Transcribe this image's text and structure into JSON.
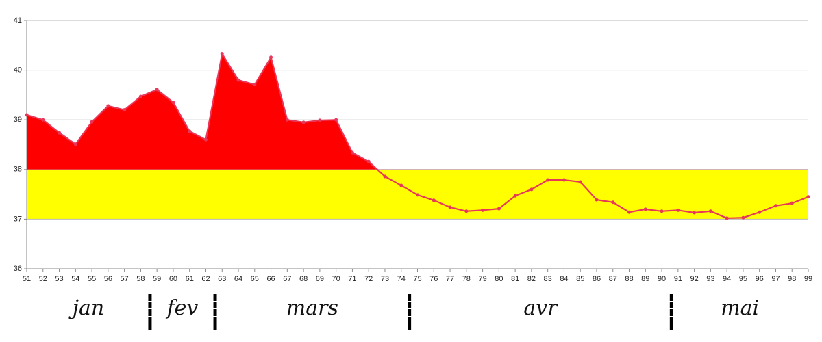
{
  "chart_data": {
    "type": "line",
    "x": [
      51,
      52,
      53,
      54,
      55,
      56,
      57,
      58,
      59,
      60,
      61,
      62,
      63,
      64,
      65,
      66,
      67,
      68,
      69,
      70,
      71,
      72,
      73,
      74,
      75,
      76,
      77,
      78,
      79,
      80,
      81,
      82,
      83,
      84,
      85,
      86,
      87,
      88,
      89,
      90,
      91,
      92,
      93,
      94,
      95,
      96,
      97,
      98,
      99
    ],
    "series": [
      {
        "color": "#e8385a",
        "values": [
          39.1,
          39.0,
          38.74,
          38.51,
          38.96,
          39.28,
          39.2,
          39.47,
          39.61,
          39.35,
          38.77,
          38.6,
          40.33,
          39.8,
          39.71,
          40.26,
          39.0,
          38.95,
          38.99,
          39.0,
          38.34,
          38.16,
          37.86,
          37.68,
          37.49,
          37.38,
          37.24,
          37.16,
          37.18,
          37.21,
          37.47,
          37.6,
          37.79,
          37.79,
          37.75,
          37.39,
          37.34,
          37.14,
          37.2,
          37.16,
          37.18,
          37.13,
          37.16,
          37.02,
          37.03,
          37.14,
          37.27,
          37.32,
          37.45
        ]
      }
    ],
    "xlim": [
      51,
      99
    ],
    "xticks": [
      51,
      52,
      53,
      54,
      55,
      56,
      57,
      58,
      59,
      60,
      61,
      62,
      63,
      64,
      65,
      66,
      67,
      68,
      69,
      70,
      71,
      72,
      73,
      74,
      75,
      76,
      77,
      78,
      79,
      80,
      81,
      82,
      83,
      84,
      85,
      86,
      87,
      88,
      89,
      90,
      91,
      92,
      93,
      94,
      95,
      96,
      97,
      98,
      99
    ],
    "ylim": [
      36,
      41
    ],
    "yticks": [
      36,
      37,
      38,
      39,
      40,
      41
    ],
    "grid": true,
    "band": [
      37,
      38
    ],
    "band_color": "#ffff00",
    "fill_above": 38,
    "fill_color": "#ff0000",
    "months": [
      "jan",
      "fev",
      "mars",
      "avr",
      "mai"
    ],
    "month_dividers": [
      58.57,
      62.57,
      74.5,
      90.6
    ]
  }
}
